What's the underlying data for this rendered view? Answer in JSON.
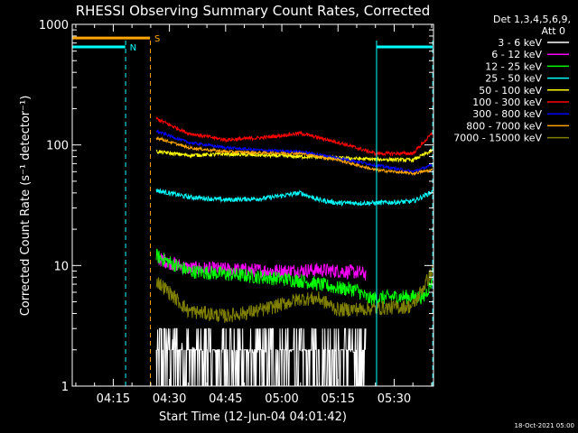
{
  "chart_data": {
    "type": "line",
    "title": "RHESSI Observing Summary Count Rates, Corrected",
    "xlabel": "Start Time (12-Jun-04 04:01:42)",
    "ylabel": "Corrected Count Rate (s⁻¹ detector⁻¹)",
    "yscale": "log",
    "ylim": [
      1,
      1000
    ],
    "xlim_minutes": [
      4.05,
      100.5
    ],
    "x_ticks": [
      {
        "label": "04:15",
        "minute": 15
      },
      {
        "label": "04:30",
        "minute": 30
      },
      {
        "label": "04:45",
        "minute": 45
      },
      {
        "label": "05:00",
        "minute": 60
      },
      {
        "label": "05:15",
        "minute": 75
      },
      {
        "label": "05:30",
        "minute": 90
      }
    ],
    "y_ticks": [
      {
        "label": "1",
        "value": 1
      },
      {
        "label": "10",
        "value": 10
      },
      {
        "label": "100",
        "value": 100
      },
      {
        "label": "1000",
        "value": 1000
      }
    ],
    "legend_header": [
      "Det 1,3,4,5,6,9,",
      "Att 0"
    ],
    "series": [
      {
        "name": "3 - 6 keV",
        "color": "#ffffff",
        "noise": 0.45,
        "points": [
          [
            26.5,
            3.0
          ],
          [
            30,
            2.5
          ],
          [
            40,
            1.9
          ],
          [
            55,
            1.9
          ],
          [
            70,
            2.0
          ],
          [
            80,
            1.9
          ],
          [
            82.5,
            1.8
          ]
        ]
      },
      {
        "name": "6 - 12 keV",
        "color": "#ff00ff",
        "noise": 0.06,
        "points": [
          [
            26.5,
            11.5
          ],
          [
            35,
            9.5
          ],
          [
            45,
            9.3
          ],
          [
            60,
            9.0
          ],
          [
            70,
            9.2
          ],
          [
            80,
            8.8
          ],
          [
            82.5,
            8.5
          ]
        ]
      },
      {
        "name": "12 - 25 keV",
        "color": "#00ff00",
        "noise": 0.06,
        "points": [
          [
            26.5,
            12.0
          ],
          [
            35,
            9.0
          ],
          [
            45,
            8.5
          ],
          [
            55,
            8.0
          ],
          [
            65,
            7.5
          ],
          [
            75,
            6.5
          ],
          [
            80,
            6.3
          ],
          [
            83,
            5.3
          ],
          [
            90,
            5.5
          ],
          [
            98,
            5.5
          ],
          [
            100.2,
            7.5
          ]
        ]
      },
      {
        "name": "25 - 50 keV",
        "color": "#00ffff",
        "noise": 0.02,
        "points": [
          [
            26.5,
            42
          ],
          [
            35,
            37
          ],
          [
            45,
            35
          ],
          [
            55,
            36
          ],
          [
            65,
            40
          ],
          [
            70,
            35
          ],
          [
            75,
            33
          ],
          [
            85,
            33
          ],
          [
            95,
            34
          ],
          [
            100.2,
            41
          ]
        ]
      },
      {
        "name": "50 - 100 keV",
        "color": "#ffff00",
        "noise": 0.015,
        "points": [
          [
            26.5,
            88
          ],
          [
            35,
            82
          ],
          [
            45,
            84
          ],
          [
            55,
            82
          ],
          [
            65,
            80
          ],
          [
            75,
            78
          ],
          [
            85,
            76
          ],
          [
            95,
            75
          ],
          [
            100.2,
            90
          ]
        ]
      },
      {
        "name": "100 - 300 keV",
        "color": "#ff0000",
        "noise": 0.015,
        "points": [
          [
            26.5,
            165
          ],
          [
            35,
            125
          ],
          [
            45,
            110
          ],
          [
            55,
            115
          ],
          [
            65,
            125
          ],
          [
            75,
            105
          ],
          [
            85,
            85
          ],
          [
            95,
            85
          ],
          [
            100.2,
            125
          ]
        ]
      },
      {
        "name": "300 - 800 keV",
        "color": "#0000ff",
        "noise": 0.012,
        "points": [
          [
            26.5,
            130
          ],
          [
            35,
            105
          ],
          [
            45,
            95
          ],
          [
            55,
            90
          ],
          [
            65,
            88
          ],
          [
            75,
            78
          ],
          [
            85,
            68
          ],
          [
            95,
            60
          ],
          [
            100.2,
            68
          ]
        ]
      },
      {
        "name": "800 - 7000 keV",
        "color": "#ffa500",
        "noise": 0.012,
        "points": [
          [
            26.5,
            115
          ],
          [
            35,
            95
          ],
          [
            45,
            88
          ],
          [
            55,
            86
          ],
          [
            65,
            85
          ],
          [
            75,
            75
          ],
          [
            85,
            62
          ],
          [
            95,
            58
          ],
          [
            100.2,
            62
          ]
        ]
      },
      {
        "name": "7000 - 15000 keV",
        "color": "#808000",
        "noise": 0.06,
        "points": [
          [
            26.5,
            7.5
          ],
          [
            30,
            6.0
          ],
          [
            35,
            4.2
          ],
          [
            45,
            3.8
          ],
          [
            55,
            4.3
          ],
          [
            65,
            5.3
          ],
          [
            70,
            5.3
          ],
          [
            75,
            4.3
          ],
          [
            85,
            4.4
          ],
          [
            95,
            4.6
          ],
          [
            100.2,
            9.0
          ]
        ]
      }
    ],
    "annotations": [
      {
        "type": "bar",
        "label": "N",
        "color": "#00ffff",
        "value": 650,
        "segments": [
          [
            4.05,
            18.2
          ],
          [
            85.3,
            100.3
          ]
        ]
      },
      {
        "type": "bar",
        "label": "S",
        "color": "#ffa500",
        "value": 770,
        "segments": [
          [
            4.05,
            24.8
          ]
        ]
      },
      {
        "type": "vline",
        "color": "#00ffff",
        "style": "dashed",
        "minute": 18.3
      },
      {
        "type": "vline",
        "color": "#ffa500",
        "style": "dashed",
        "minute": 24.9
      },
      {
        "type": "vline",
        "color": "#00ffff",
        "style": "solid",
        "minute": 85.3
      },
      {
        "type": "vline",
        "color": "#00ffff",
        "style": "dashed",
        "minute": 100.3
      }
    ],
    "grid": false,
    "legend_position": "right"
  },
  "footer": {
    "date_stamp": "18-Oct-2021 05:00"
  }
}
